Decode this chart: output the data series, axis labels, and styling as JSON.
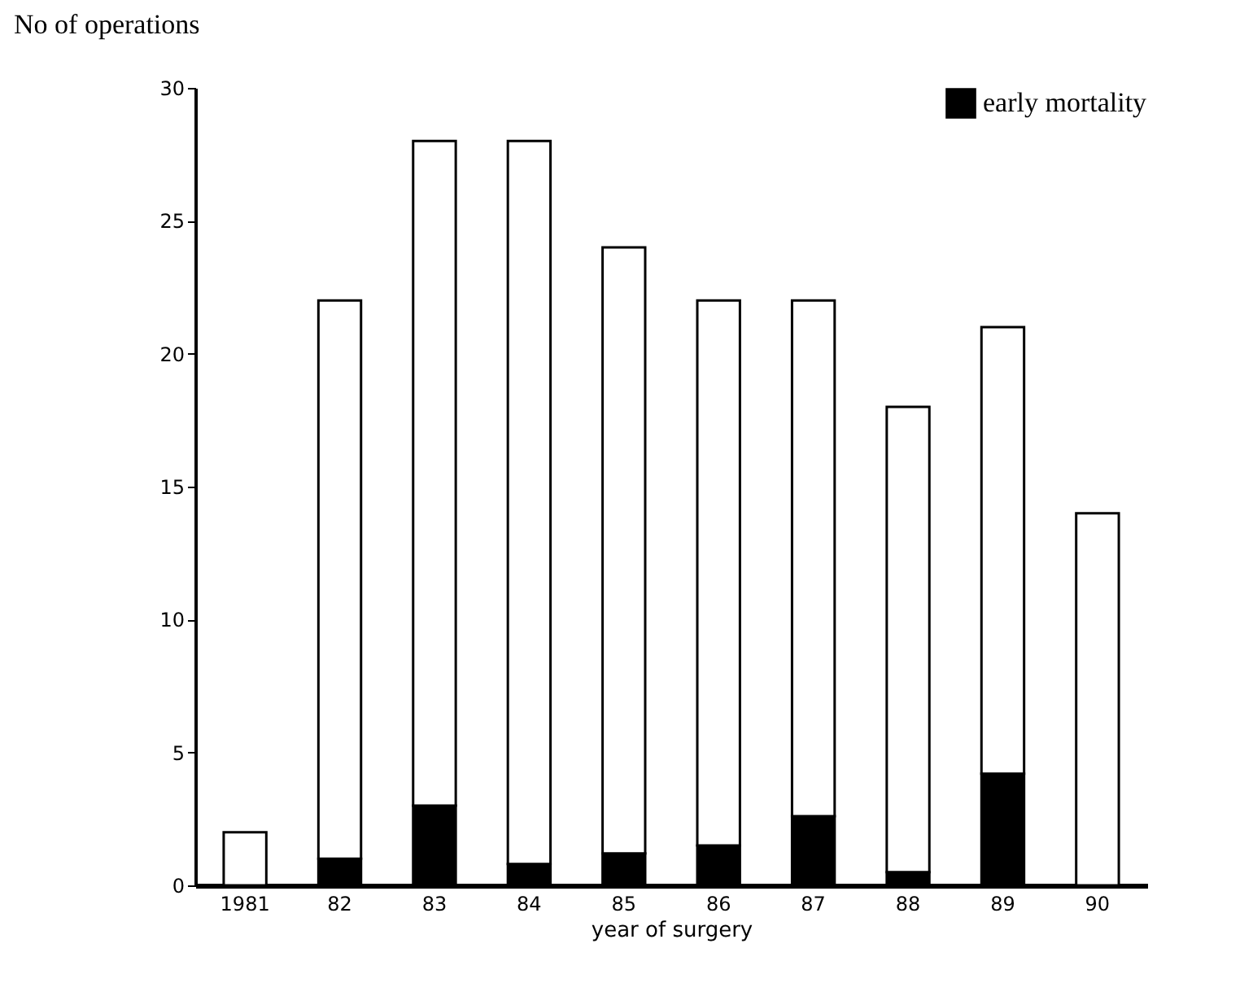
{
  "chart_data": {
    "type": "bar",
    "stacked": true,
    "xlabel": "year of surgery",
    "ylabel": "No of operations",
    "categories": [
      "1981",
      "82",
      "83",
      "84",
      "85",
      "86",
      "87",
      "88",
      "89",
      "90"
    ],
    "series": [
      {
        "name": "early mortality",
        "color": "#000000",
        "values": [
          0,
          1,
          3,
          0.8,
          1.2,
          1.5,
          2.6,
          0.5,
          4.2,
          0
        ]
      },
      {
        "color": "#ffffff",
        "values": [
          2,
          21,
          25,
          27.2,
          22.8,
          20.5,
          19.4,
          17.5,
          16.8,
          14
        ]
      }
    ],
    "ylim": [
      0,
      30
    ],
    "yticks": [
      0,
      5,
      10,
      15,
      20,
      25,
      30
    ],
    "grid": false,
    "legend": "top right"
  }
}
